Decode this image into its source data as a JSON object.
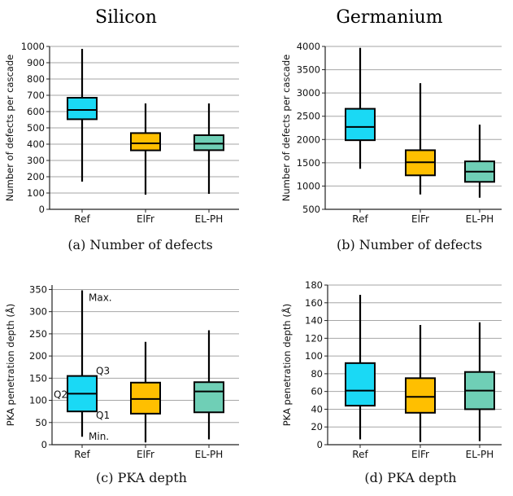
{
  "column_titles": [
    "Silicon",
    "Germanium"
  ],
  "chart_data": [
    {
      "type": "box",
      "caption": "(a) Number of defects",
      "ylabel": "Number of defects per cascade",
      "categories": [
        "Ref",
        "ElFr",
        "EL-PH"
      ],
      "colors": [
        "#1ad9f5",
        "#ffbf00",
        "#6fcfb6"
      ],
      "ylim": [
        0,
        1000
      ],
      "yticks": [
        0,
        100,
        200,
        300,
        400,
        500,
        600,
        700,
        800,
        900,
        1000
      ],
      "grid": "horizontal",
      "boxes": [
        {
          "min": 170,
          "q1": 553,
          "median": 610,
          "q3": 685,
          "max": 985
        },
        {
          "min": 90,
          "q1": 362,
          "median": 405,
          "q3": 468,
          "max": 650
        },
        {
          "min": 95,
          "q1": 363,
          "median": 403,
          "q3": 455,
          "max": 650
        }
      ]
    },
    {
      "type": "box",
      "caption": "(b) Number of defects",
      "ylabel": "Number of defects per cascade",
      "categories": [
        "Ref",
        "ElFr",
        "EL-PH"
      ],
      "colors": [
        "#1ad9f5",
        "#ffbf00",
        "#6fcfb6"
      ],
      "ylim": [
        500,
        4000
      ],
      "yticks": [
        500,
        1000,
        1500,
        2000,
        2500,
        3000,
        3500,
        4000
      ],
      "grid": "horizontal",
      "boxes": [
        {
          "min": 1370,
          "q1": 1985,
          "median": 2270,
          "q3": 2660,
          "max": 3970
        },
        {
          "min": 820,
          "q1": 1230,
          "median": 1510,
          "q3": 1770,
          "max": 3210
        },
        {
          "min": 750,
          "q1": 1090,
          "median": 1310,
          "q3": 1530,
          "max": 2320
        }
      ]
    },
    {
      "type": "box",
      "caption": "(c) PKA depth",
      "ylabel": "PKA penetration depth (Å)",
      "categories": [
        "Ref",
        "ElFr",
        "EL-PH"
      ],
      "colors": [
        "#1ad9f5",
        "#ffbf00",
        "#6fcfb6"
      ],
      "ylim": [
        0,
        360
      ],
      "yticks": [
        0,
        50,
        100,
        150,
        200,
        250,
        300,
        350
      ],
      "grid": "horizontal",
      "boxes": [
        {
          "min": 18,
          "q1": 75,
          "median": 115,
          "q3": 155,
          "max": 348
        },
        {
          "min": 5,
          "q1": 70,
          "median": 103,
          "q3": 140,
          "max": 232
        },
        {
          "min": 12,
          "q1": 73,
          "median": 120,
          "q3": 141,
          "max": 258
        }
      ],
      "annotations": [
        "Max.",
        "Q3",
        "Q2",
        "Q1",
        "Min."
      ]
    },
    {
      "type": "box",
      "caption": "(d) PKA depth",
      "ylabel": "PKA penetration depth (Å)",
      "categories": [
        "Ref",
        "ElFr",
        "EL-PH"
      ],
      "colors": [
        "#1ad9f5",
        "#ffbf00",
        "#6fcfb6"
      ],
      "ylim": [
        0,
        180
      ],
      "yticks": [
        0,
        20,
        40,
        60,
        80,
        100,
        120,
        140,
        160,
        180
      ],
      "grid": "horizontal",
      "boxes": [
        {
          "min": 6,
          "q1": 44,
          "median": 61,
          "q3": 92,
          "max": 169
        },
        {
          "min": 3,
          "q1": 36,
          "median": 54,
          "q3": 75,
          "max": 135
        },
        {
          "min": 4,
          "q1": 40,
          "median": 61,
          "q3": 82,
          "max": 138
        }
      ]
    }
  ]
}
